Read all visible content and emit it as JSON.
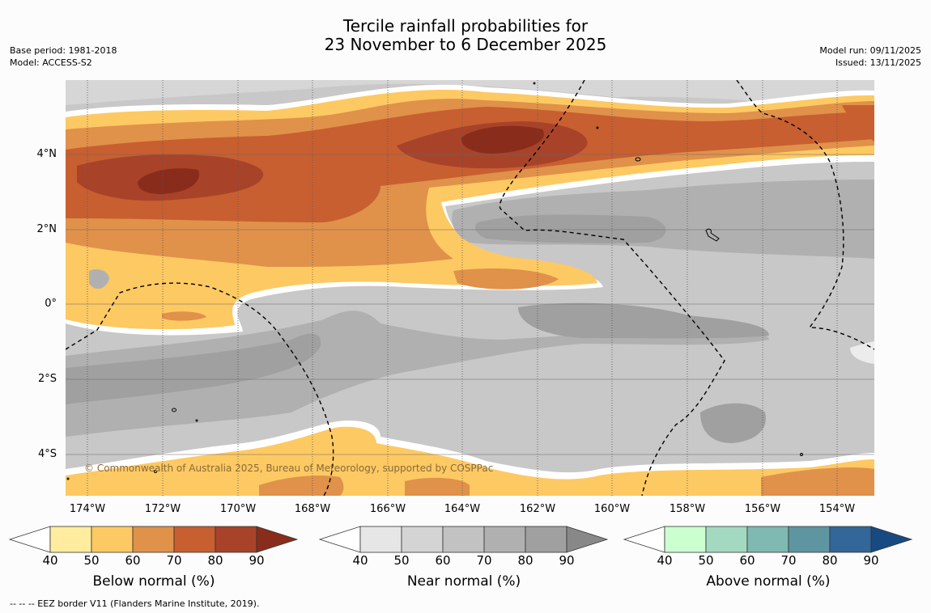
{
  "title": {
    "line1": "Tercile rainfall probabilities for",
    "line2": "23 November to 6 December 2025"
  },
  "meta_left": {
    "base_period": "Base period: 1981-2018",
    "model": "Model: ACCESS-S2"
  },
  "meta_right": {
    "model_run": "Model run: 09/11/2025",
    "issued": "Issued: 13/11/2025"
  },
  "axes": {
    "lat_ticks": [
      "4°N",
      "2°N",
      "0°",
      "2°S",
      "4°S"
    ],
    "lon_ticks": [
      "174°W",
      "172°W",
      "170°W",
      "168°W",
      "166°W",
      "164°W",
      "162°W",
      "160°W",
      "158°W",
      "156°W",
      "154°W"
    ]
  },
  "copyright": "© Commonwealth of Australia 2025, Bureau of Meteorology, supported by COSPPac",
  "colorbars": [
    {
      "label": "Below normal (%)",
      "ticks": [
        "40",
        "50",
        "60",
        "70",
        "80",
        "90"
      ],
      "colors": [
        "#ffffff",
        "#ffec9e",
        "#fdc963",
        "#e0914a",
        "#c85f30",
        "#a8432a",
        "#8a2c1c"
      ]
    },
    {
      "label": "Near normal (%)",
      "ticks": [
        "40",
        "50",
        "60",
        "70",
        "80",
        "90"
      ],
      "colors": [
        "#ffffff",
        "#e6e6e6",
        "#d4d4d4",
        "#c2c2c2",
        "#b0b0b0",
        "#a0a0a0",
        "#888888"
      ]
    },
    {
      "label": "Above normal (%)",
      "ticks": [
        "40",
        "50",
        "60",
        "70",
        "80",
        "90"
      ],
      "colors": [
        "#ffffff",
        "#ccffd0",
        "#a3d9c0",
        "#80b8b2",
        "#5f95a0",
        "#336699",
        "#174a80"
      ]
    }
  ],
  "footnote": "--  --  -- EEZ border V11 (Flanders Marine Institute, 2019)."
}
